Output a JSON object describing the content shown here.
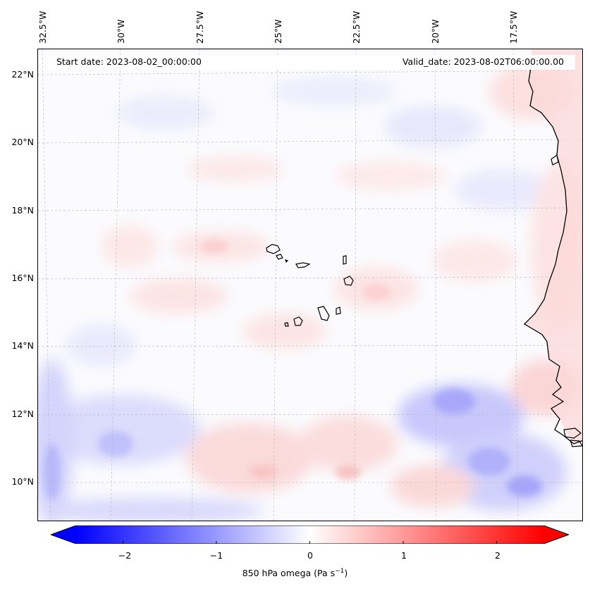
{
  "map": {
    "start_date": "Start date: 2023-08-02_00:00:00",
    "valid_date": "Valid_date: 2023-08-02T06:00:00.00",
    "longitude_labels": [
      "32.5°W",
      "30°W",
      "27.5°W",
      "25°W",
      "22.5°W",
      "20°W",
      "17.5°W"
    ],
    "latitude_labels": [
      "22°N",
      "20°N",
      "18°N",
      "16°N",
      "14°N",
      "12°N",
      "10°N"
    ],
    "extent": {
      "lon_min": -33.0,
      "lon_max": -15.5,
      "lat_min": 8.9,
      "lat_max": 22.8
    },
    "field": "850 hPa omega",
    "islands": [
      "Santo Antão",
      "São Vicente",
      "Santa Luzia",
      "São Nicolau",
      "Sal",
      "Boa Vista",
      "Maio",
      "Santiago",
      "Fogo",
      "Brava"
    ]
  },
  "colorbar": {
    "label": "850 hPa omega (Pa s",
    "unit_superscript": "−1",
    "label_close": ")",
    "ticks": [
      "−2",
      "−1",
      "0",
      "1",
      "2"
    ],
    "tick_values": [
      -2,
      -1,
      0,
      1,
      2
    ],
    "range": [
      -2.5,
      2.5
    ],
    "colors": {
      "negative": "#0000ff",
      "zero": "#ffffff",
      "positive": "#ff0000"
    },
    "extend": "both"
  }
}
